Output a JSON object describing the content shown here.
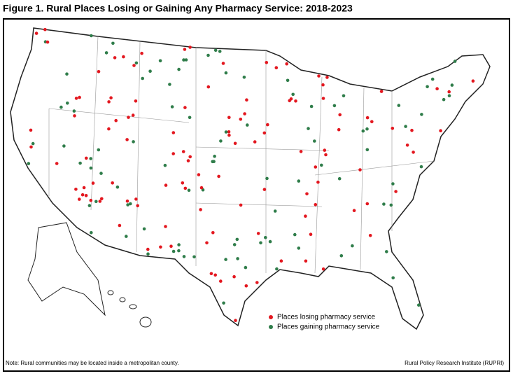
{
  "title": "Figure 1. Rural Places Losing or Gaining Any Pharmacy Service: 2018-2023",
  "legend": [
    {
      "label": "Places losing pharmacy service",
      "color": "#e3171f"
    },
    {
      "label": "Places gaining pharmacy service",
      "color": "#2f7d4a"
    }
  ],
  "note": "Note: Rural communities may be located inside a metropolitan county.",
  "source": "Rural Policy Research Institute (RUPRI)"
}
